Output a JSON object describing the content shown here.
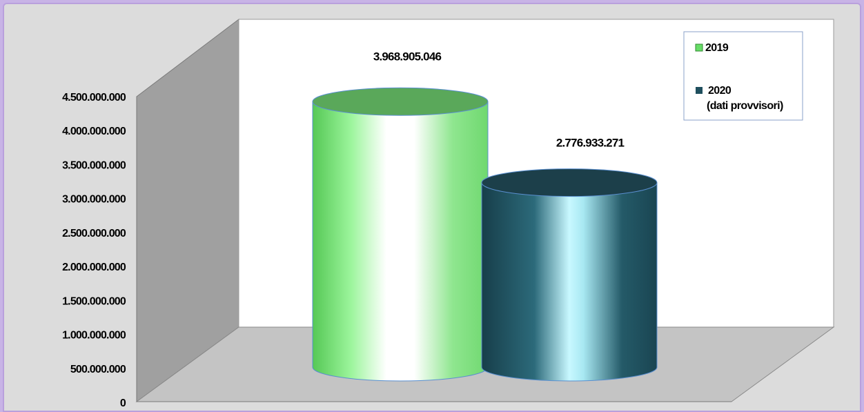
{
  "chart_data": {
    "type": "bar",
    "style": "3d-cylinder",
    "categories": [
      ""
    ],
    "series": [
      {
        "name": "2019",
        "values": [
          3968905046
        ],
        "label": "3.968.905.046",
        "color": "#66dd66"
      },
      {
        "name": "2020",
        "name_note": "(dati provvisori)",
        "values": [
          2776933271
        ],
        "label": "2.776.933.271",
        "color": "#1f4f5e"
      }
    ],
    "y_ticks": [
      "0",
      "500.000.000",
      "1.000.000.000",
      "1.500.000.000",
      "2.000.000.000",
      "2.500.000.000",
      "3.000.000.000",
      "3.500.000.000",
      "4.000.000.000",
      "4.500.000.000"
    ],
    "ylim": [
      0,
      4500000000
    ],
    "legend_position": "top-right",
    "grid": false
  },
  "legend": {
    "item1": "2019",
    "item2": "2020",
    "item2_note": "(dati provvisori)"
  }
}
